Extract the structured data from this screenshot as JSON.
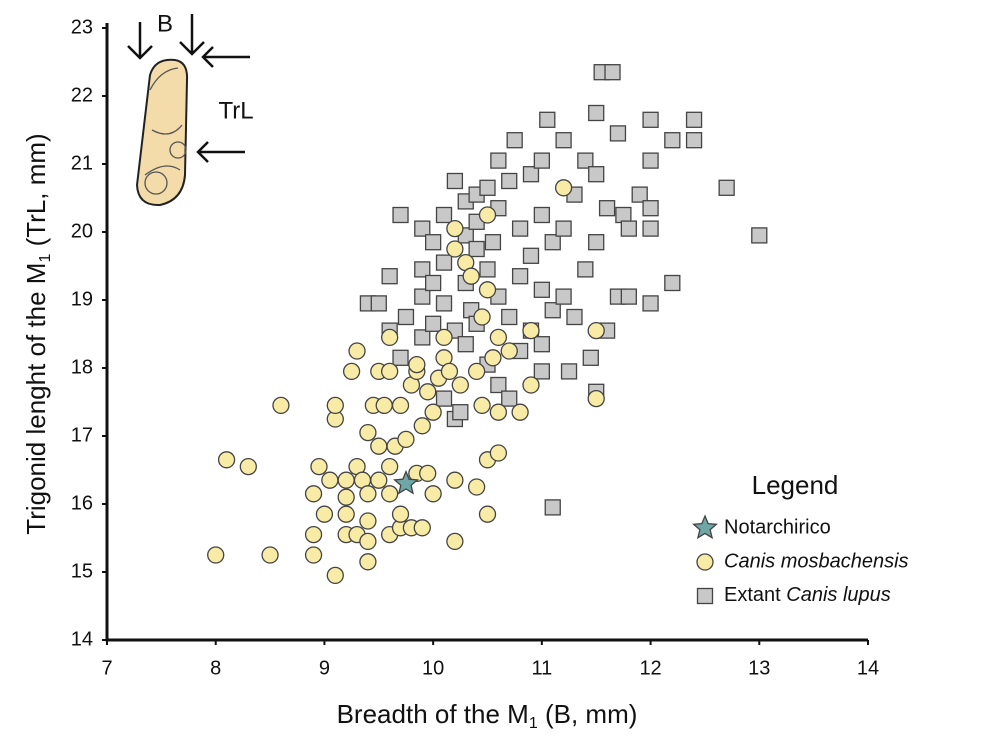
{
  "chart_data": {
    "type": "scatter",
    "x_label": [
      "Breadth of the M",
      "1",
      " (B, mm)"
    ],
    "y_label": [
      "Trigonid lenght of the M",
      "1",
      " (TrL, mm)"
    ],
    "xlim": [
      7,
      14
    ],
    "xticks": [
      7,
      8,
      9,
      10,
      11,
      12,
      13,
      14
    ],
    "ylim": [
      14,
      23
    ],
    "yticks": [
      14,
      15,
      16,
      17,
      18,
      19,
      20,
      21,
      22,
      23
    ],
    "legend_title": "Legend",
    "legend_position": "lower right",
    "inset_labels": [
      "B",
      "TrL"
    ],
    "series": [
      {
        "name": "Extant Canis lupus",
        "color": "#c8c8c8",
        "marker": "square",
        "x": [
          9.4,
          9.5,
          9.6,
          9.6,
          9.7,
          9.7,
          9.75,
          9.9,
          9.9,
          9.9,
          9.9,
          10.0,
          10.0,
          10.0,
          10.1,
          10.1,
          10.1,
          10.1,
          10.2,
          10.2,
          10.2,
          10.25,
          10.3,
          10.3,
          10.3,
          10.3,
          10.35,
          10.4,
          10.4,
          10.4,
          10.4,
          10.5,
          10.5,
          10.5,
          10.55,
          10.6,
          10.6,
          10.6,
          10.6,
          10.7,
          10.7,
          10.7,
          10.75,
          10.8,
          10.8,
          10.8,
          10.9,
          10.9,
          10.9,
          11.0,
          11.0,
          11.0,
          11.0,
          11.0,
          11.05,
          11.1,
          11.1,
          11.1,
          11.2,
          11.2,
          11.2,
          11.25,
          11.3,
          11.3,
          11.4,
          11.4,
          11.45,
          11.5,
          11.5,
          11.5,
          11.5,
          11.55,
          11.6,
          11.6,
          11.65,
          11.7,
          11.7,
          11.75,
          11.8,
          11.8,
          11.9,
          12.0,
          12.0,
          12.0,
          12.0,
          12.0,
          12.2,
          12.2,
          12.4,
          12.4,
          12.7,
          13.0
        ],
        "y": [
          18.95,
          18.95,
          19.35,
          18.55,
          18.15,
          20.25,
          18.75,
          19.05,
          19.45,
          20.05,
          18.45,
          19.85,
          19.25,
          18.65,
          20.25,
          19.55,
          18.95,
          17.55,
          20.75,
          18.55,
          17.25,
          17.35,
          20.45,
          19.95,
          19.25,
          18.35,
          18.85,
          20.55,
          20.15,
          19.75,
          18.65,
          20.65,
          19.45,
          18.05,
          19.85,
          21.05,
          20.35,
          19.05,
          17.75,
          20.75,
          18.75,
          17.55,
          21.35,
          20.05,
          19.35,
          18.25,
          20.85,
          19.65,
          18.55,
          21.05,
          20.25,
          19.15,
          18.35,
          17.95,
          21.65,
          19.85,
          18.85,
          15.95,
          21.35,
          20.05,
          19.05,
          17.95,
          20.55,
          18.75,
          21.05,
          19.45,
          18.15,
          21.75,
          20.85,
          19.85,
          17.65,
          22.35,
          20.35,
          18.55,
          22.35,
          21.45,
          19.05,
          20.25,
          19.05,
          20.05,
          20.55,
          21.65,
          21.05,
          20.35,
          20.05,
          18.95,
          21.35,
          19.25,
          21.65,
          21.35,
          20.65,
          19.95
        ]
      },
      {
        "name": "Canis mosbachensis",
        "color": "#f7eba6",
        "marker": "circle",
        "italic": true,
        "x": [
          8.0,
          8.1,
          8.3,
          8.5,
          8.6,
          8.9,
          8.9,
          8.9,
          8.95,
          9.0,
          9.05,
          9.1,
          9.1,
          9.1,
          9.2,
          9.2,
          9.2,
          9.2,
          9.25,
          9.3,
          9.3,
          9.3,
          9.35,
          9.4,
          9.4,
          9.4,
          9.4,
          9.4,
          9.45,
          9.5,
          9.5,
          9.5,
          9.55,
          9.6,
          9.6,
          9.6,
          9.6,
          9.6,
          9.65,
          9.7,
          9.7,
          9.7,
          9.75,
          9.8,
          9.8,
          9.85,
          9.85,
          9.85,
          9.9,
          9.9,
          9.95,
          9.95,
          10.0,
          10.0,
          10.05,
          10.1,
          10.1,
          10.15,
          10.2,
          10.2,
          10.2,
          10.2,
          10.25,
          10.3,
          10.35,
          10.4,
          10.4,
          10.45,
          10.45,
          10.5,
          10.5,
          10.5,
          10.5,
          10.55,
          10.6,
          10.6,
          10.6,
          10.7,
          10.8,
          10.9,
          10.9,
          11.2,
          11.5,
          11.5
        ],
        "y": [
          15.25,
          16.65,
          16.55,
          15.25,
          17.45,
          15.25,
          15.55,
          16.15,
          16.55,
          15.85,
          16.35,
          14.95,
          17.25,
          17.45,
          15.55,
          15.85,
          16.1,
          16.35,
          17.95,
          18.25,
          15.55,
          16.55,
          16.35,
          15.15,
          15.45,
          15.75,
          16.15,
          17.05,
          17.45,
          16.35,
          16.85,
          17.95,
          17.45,
          15.55,
          16.15,
          16.55,
          17.95,
          18.45,
          16.85,
          15.65,
          15.85,
          17.45,
          16.95,
          15.65,
          17.75,
          17.95,
          18.05,
          16.45,
          15.65,
          17.15,
          17.65,
          16.45,
          16.15,
          17.35,
          17.85,
          18.15,
          18.45,
          17.95,
          16.35,
          15.45,
          19.75,
          20.05,
          17.75,
          19.55,
          19.35,
          16.25,
          17.95,
          17.45,
          18.75,
          16.65,
          15.85,
          19.15,
          20.25,
          18.15,
          16.75,
          17.35,
          18.45,
          18.25,
          17.35,
          18.55,
          17.75,
          20.65,
          18.55,
          17.55
        ]
      },
      {
        "name": "Notarchirico",
        "color": "#6fa6a6",
        "marker": "star",
        "x": [
          9.75
        ],
        "y": [
          16.3
        ]
      }
    ]
  }
}
